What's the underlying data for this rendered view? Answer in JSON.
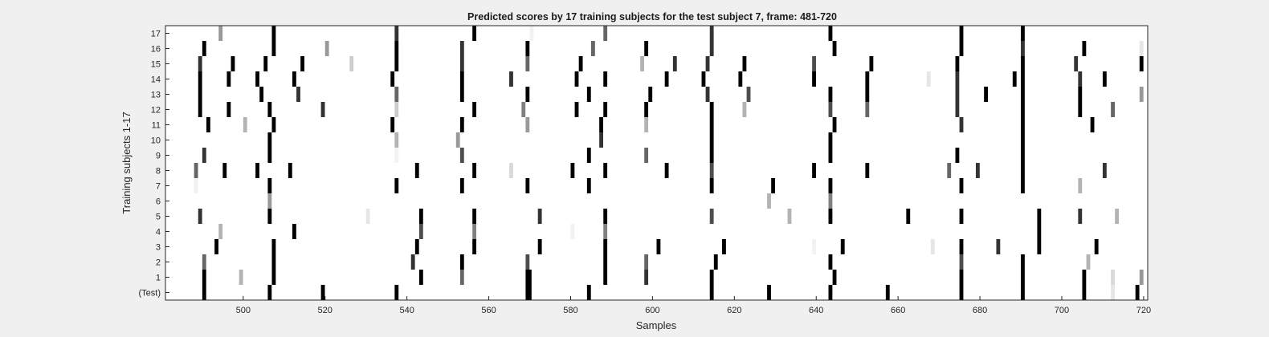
{
  "chart_data": {
    "type": "heatmap",
    "title": "Predicted scores by 17 training subjects for the test subject 7, frame: 481-720",
    "xlabel": "Samples",
    "ylabel": "Training subjects 1-17",
    "xlim": [
      481,
      720
    ],
    "xticks": [
      "500",
      "520",
      "540",
      "560",
      "580",
      "600",
      "620",
      "640",
      "660",
      "680",
      "700",
      "720"
    ],
    "xtick_values": [
      500,
      520,
      540,
      560,
      580,
      600,
      620,
      640,
      660,
      680,
      700,
      720
    ],
    "row_labels": [
      "(Test)",
      "1",
      "2",
      "3",
      "4",
      "5",
      "6",
      "7",
      "8",
      "9",
      "10",
      "11",
      "12",
      "13",
      "14",
      "15",
      "16",
      "17"
    ],
    "value_scale": "0 = white, 1 = black",
    "rows": [
      {
        "label": "(Test)",
        "cells": [
          [
            490,
            1
          ],
          [
            506,
            1
          ],
          [
            519,
            1
          ],
          [
            537,
            1
          ],
          [
            569,
            1
          ],
          [
            569.5,
            1
          ],
          [
            584,
            1
          ],
          [
            614,
            1
          ],
          [
            628,
            1
          ],
          [
            643,
            1
          ],
          [
            657,
            1
          ],
          [
            675,
            1
          ],
          [
            690,
            1
          ],
          [
            705,
            1
          ],
          [
            712,
            0.1
          ],
          [
            718,
            1
          ]
        ]
      },
      {
        "label": "1",
        "cells": [
          [
            490,
            1
          ],
          [
            499,
            0.3
          ],
          [
            507,
            1
          ],
          [
            543,
            1
          ],
          [
            553,
            0.6
          ],
          [
            569,
            1
          ],
          [
            569.5,
            1
          ],
          [
            588,
            1
          ],
          [
            598,
            0.8
          ],
          [
            614,
            1
          ],
          [
            644,
            1
          ],
          [
            675,
            1
          ],
          [
            690,
            1
          ],
          [
            705,
            1
          ],
          [
            712,
            0.15
          ],
          [
            719,
            0.4
          ]
        ]
      },
      {
        "label": "2",
        "cells": [
          [
            490,
            0.6
          ],
          [
            507,
            1
          ],
          [
            541,
            0.8
          ],
          [
            553,
            1
          ],
          [
            569,
            0.7
          ],
          [
            588,
            1
          ],
          [
            598,
            0.6
          ],
          [
            615,
            1
          ],
          [
            643,
            1
          ],
          [
            675,
            0.7
          ],
          [
            690,
            1
          ],
          [
            706,
            0.3
          ]
        ]
      },
      {
        "label": "3",
        "cells": [
          [
            493,
            1
          ],
          [
            507,
            1
          ],
          [
            542,
            1
          ],
          [
            556,
            1
          ],
          [
            572,
            1
          ],
          [
            588,
            1
          ],
          [
            601,
            1
          ],
          [
            617,
            1
          ],
          [
            639,
            0.05
          ],
          [
            646,
            1
          ],
          [
            668,
            0.1
          ],
          [
            675,
            1
          ],
          [
            684,
            0.8
          ],
          [
            694,
            1
          ],
          [
            708,
            1
          ]
        ]
      },
      {
        "label": "4",
        "cells": [
          [
            494,
            0.3
          ],
          [
            512,
            1
          ],
          [
            543,
            0.7
          ],
          [
            556,
            0.5
          ],
          [
            580,
            0.05
          ],
          [
            588,
            0.5
          ],
          [
            694,
            1
          ]
        ]
      },
      {
        "label": "5",
        "cells": [
          [
            489,
            0.8
          ],
          [
            506,
            1
          ],
          [
            530,
            0.1
          ],
          [
            543,
            1
          ],
          [
            556,
            1
          ],
          [
            572,
            0.8
          ],
          [
            588,
            1
          ],
          [
            614,
            0.7
          ],
          [
            633,
            0.3
          ],
          [
            643,
            1
          ],
          [
            662,
            1
          ],
          [
            675,
            1
          ],
          [
            694,
            1
          ],
          [
            704,
            0.8
          ],
          [
            713,
            0.3
          ]
        ]
      },
      {
        "label": "6",
        "cells": [
          [
            506,
            0.4
          ],
          [
            628,
            0.3
          ],
          [
            643,
            0.5
          ]
        ]
      },
      {
        "label": "7",
        "cells": [
          [
            488,
            0.05
          ],
          [
            506,
            1
          ],
          [
            537,
            1
          ],
          [
            553,
            1
          ],
          [
            569,
            1
          ],
          [
            584,
            1
          ],
          [
            614,
            1
          ],
          [
            629,
            1
          ],
          [
            643,
            1
          ],
          [
            675,
            1
          ],
          [
            690,
            1
          ],
          [
            704,
            0.3
          ]
        ]
      },
      {
        "label": "8",
        "cells": [
          [
            488,
            0.6
          ],
          [
            495,
            1
          ],
          [
            503,
            1
          ],
          [
            511,
            1
          ],
          [
            542,
            1
          ],
          [
            556,
            1
          ],
          [
            565,
            0.15
          ],
          [
            580,
            1
          ],
          [
            588,
            1
          ],
          [
            603,
            1
          ],
          [
            614,
            0.7
          ],
          [
            639,
            1
          ],
          [
            652,
            1
          ],
          [
            672,
            0.6
          ],
          [
            679,
            0.8
          ],
          [
            690,
            1
          ],
          [
            710,
            0.8
          ]
        ]
      },
      {
        "label": "9",
        "cells": [
          [
            490,
            0.8
          ],
          [
            506,
            1
          ],
          [
            537,
            0.05
          ],
          [
            553,
            0.7
          ],
          [
            584,
            1
          ],
          [
            598,
            0.6
          ],
          [
            614,
            1
          ],
          [
            643,
            1
          ],
          [
            674,
            1
          ],
          [
            690,
            1
          ]
        ]
      },
      {
        "label": "10",
        "cells": [
          [
            506,
            1
          ],
          [
            537,
            0.3
          ],
          [
            552,
            0.4
          ],
          [
            587,
            0.8
          ],
          [
            614,
            1
          ],
          [
            643,
            1
          ],
          [
            690,
            1
          ]
        ]
      },
      {
        "label": "11",
        "cells": [
          [
            491,
            1
          ],
          [
            500,
            0.3
          ],
          [
            507,
            1
          ],
          [
            536,
            1
          ],
          [
            553,
            1
          ],
          [
            569,
            0.4
          ],
          [
            587,
            1
          ],
          [
            598,
            0.3
          ],
          [
            614,
            1
          ],
          [
            644,
            1
          ],
          [
            675,
            0.8
          ],
          [
            690,
            1
          ],
          [
            707,
            1
          ]
        ]
      },
      {
        "label": "12",
        "cells": [
          [
            489,
            1
          ],
          [
            496,
            1
          ],
          [
            506,
            1
          ],
          [
            519,
            0.8
          ],
          [
            537,
            0.2
          ],
          [
            556,
            1
          ],
          [
            568,
            0.5
          ],
          [
            581,
            1
          ],
          [
            588,
            1
          ],
          [
            598,
            1
          ],
          [
            614,
            1
          ],
          [
            622,
            0.3
          ],
          [
            643,
            0.7
          ],
          [
            652,
            0.6
          ],
          [
            674,
            0.8
          ],
          [
            690,
            1
          ],
          [
            704,
            1
          ],
          [
            712,
            0.6
          ]
        ]
      },
      {
        "label": "13",
        "cells": [
          [
            489,
            1
          ],
          [
            504,
            1
          ],
          [
            513,
            0.8
          ],
          [
            537,
            0.6
          ],
          [
            553,
            1
          ],
          [
            569,
            1
          ],
          [
            584,
            1
          ],
          [
            599,
            1
          ],
          [
            613,
            0.8
          ],
          [
            623,
            0.7
          ],
          [
            643,
            1
          ],
          [
            652,
            1
          ],
          [
            674,
            0.8
          ],
          [
            681,
            1
          ],
          [
            690,
            1
          ],
          [
            704,
            1
          ],
          [
            719,
            0.4
          ]
        ]
      },
      {
        "label": "14",
        "cells": [
          [
            489,
            1
          ],
          [
            496,
            1
          ],
          [
            503,
            1
          ],
          [
            512,
            1
          ],
          [
            536,
            1
          ],
          [
            553,
            1
          ],
          [
            565,
            0.8
          ],
          [
            581,
            1
          ],
          [
            588,
            1
          ],
          [
            603,
            1
          ],
          [
            612,
            1
          ],
          [
            621,
            1
          ],
          [
            639,
            1
          ],
          [
            652,
            1
          ],
          [
            667,
            0.1
          ],
          [
            674,
            0.8
          ],
          [
            688,
            1
          ],
          [
            690,
            1
          ],
          [
            704,
            0.8
          ],
          [
            710,
            1
          ]
        ]
      },
      {
        "label": "15",
        "cells": [
          [
            489,
            0.8
          ],
          [
            497,
            1
          ],
          [
            505,
            1
          ],
          [
            514,
            1
          ],
          [
            526,
            0.2
          ],
          [
            537,
            1
          ],
          [
            553,
            0.8
          ],
          [
            569,
            0.6
          ],
          [
            582,
            1
          ],
          [
            597,
            0.3
          ],
          [
            605,
            0.8
          ],
          [
            613,
            0.8
          ],
          [
            622,
            1
          ],
          [
            639,
            0.7
          ],
          [
            653,
            1
          ],
          [
            674,
            1
          ],
          [
            690,
            1
          ],
          [
            703,
            0.8
          ],
          [
            719,
            1
          ]
        ]
      },
      {
        "label": "16",
        "cells": [
          [
            490,
            1
          ],
          [
            507,
            1
          ],
          [
            520,
            0.4
          ],
          [
            537,
            1
          ],
          [
            553,
            0.8
          ],
          [
            569,
            1
          ],
          [
            585,
            0.6
          ],
          [
            598,
            1
          ],
          [
            614,
            0.8
          ],
          [
            644,
            1
          ],
          [
            675,
            1
          ],
          [
            690,
            0.8
          ],
          [
            705,
            1
          ],
          [
            719,
            0.1
          ]
        ]
      },
      {
        "label": "17",
        "cells": [
          [
            494,
            0.4
          ],
          [
            507,
            1
          ],
          [
            537,
            0.8
          ],
          [
            556,
            1
          ],
          [
            570,
            0.05
          ],
          [
            588,
            0.6
          ],
          [
            614,
            0.8
          ],
          [
            643,
            1
          ],
          [
            675,
            1
          ],
          [
            690,
            1
          ]
        ]
      }
    ]
  }
}
